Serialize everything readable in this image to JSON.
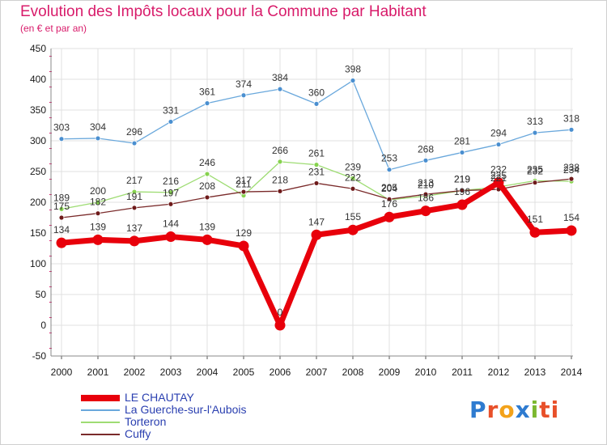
{
  "page": {
    "title": "Evolution des Impôts locaux pour la Commune par Habitant",
    "subtitle": "(en € et par an)"
  },
  "logo": {
    "text": "Proxiti",
    "letter_colors": [
      "#2e7bd0",
      "#e8502a",
      "#f3a21a",
      "#2e7bd0",
      "#7cb82f",
      "#e8502a",
      "#e8502a"
    ]
  },
  "colors": {
    "title": "#d81b6a",
    "axis_text": "#1a1a1a",
    "grid": "#e0e0e0",
    "axis_marker": "#d81b6a"
  },
  "chart_data": {
    "type": "line",
    "title": "Evolution des Impôts locaux pour la Commune par Habitant",
    "subtitle": "(en € et par an)",
    "xlabel": "",
    "ylabel": "",
    "x": [
      "2000",
      "2001",
      "2002",
      "2003",
      "2004",
      "2005",
      "2006",
      "2007",
      "2008",
      "2009",
      "2010",
      "2011",
      "2012",
      "2013",
      "2014"
    ],
    "ylim": [
      -50,
      450
    ],
    "yticks": [
      -50,
      0,
      50,
      100,
      150,
      200,
      250,
      300,
      350,
      400,
      450
    ],
    "grid": true,
    "legend_position": "bottom-left",
    "series": [
      {
        "name": "LE CHAUTAY",
        "values": [
          134,
          139,
          137,
          144,
          139,
          129,
          0,
          147,
          155,
          176,
          186,
          196,
          232,
          151,
          154
        ],
        "labels": [
          "134",
          "139",
          "137",
          "144",
          "139",
          "129",
          "0",
          "147",
          "155",
          "176",
          "186",
          "196",
          "232",
          "151",
          "154"
        ],
        "color": "#e8000b",
        "marker_color": "#e8000b",
        "width": 7
      },
      {
        "name": "La Guerche-sur-l'Aubois",
        "values": [
          303,
          304,
          296,
          331,
          361,
          374,
          384,
          360,
          398,
          253,
          268,
          281,
          294,
          313,
          318
        ],
        "labels": [
          "303",
          "304",
          "296",
          "331",
          "361",
          "374",
          "384",
          "360",
          "398",
          "253",
          "268",
          "281",
          "294",
          "313",
          "318"
        ],
        "color": "#6aa8dc",
        "marker_color": "#4a8fd0",
        "width": 1.3
      },
      {
        "name": "Torteron",
        "values": [
          189,
          200,
          217,
          216,
          246,
          211,
          266,
          261,
          239,
          204,
          210,
          219,
          225,
          235,
          234
        ],
        "labels": [
          "189",
          "200",
          "217",
          "216",
          "246",
          "211",
          "266",
          "261",
          "239",
          "204",
          "210",
          "219",
          "225",
          "235",
          "234"
        ],
        "color": "#9edc73",
        "marker_color": "#86d24e",
        "width": 1.3
      },
      {
        "name": "Cuffy",
        "values": [
          175,
          182,
          191,
          197,
          208,
          217,
          218,
          231,
          222,
          205,
          213,
          219,
          221,
          232,
          238
        ],
        "labels": [
          "175",
          "182",
          "191",
          "197",
          "208",
          "217",
          "218",
          "231",
          "222",
          "205",
          "213",
          "219",
          "221",
          "232",
          "238"
        ],
        "color": "#7a2a2a",
        "marker_color": "#6e1a1a",
        "width": 1.3
      }
    ]
  }
}
